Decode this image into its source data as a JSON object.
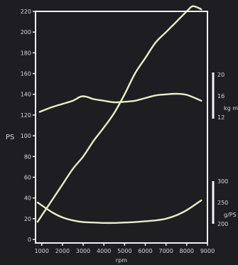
{
  "chart_data": {
    "type": "line",
    "x_ticks": [
      "1000",
      "2000",
      "3000",
      "4000",
      "5000",
      "6000",
      "7000",
      "8000",
      "9000"
    ],
    "xlabel": "rpm",
    "xlim": [
      700,
      9000
    ],
    "left_axis": {
      "label": "PS",
      "ticks": [
        "0",
        "20",
        "40",
        "60",
        "80",
        "100",
        "120",
        "140",
        "160",
        "180",
        "200",
        "220"
      ],
      "ylim": [
        0,
        220
      ]
    },
    "torque_axis": {
      "label": "kg m",
      "ticks": [
        "12",
        "16",
        "20"
      ]
    },
    "consumption_axis": {
      "label": "g/PS h",
      "ticks": [
        "200",
        "250",
        "300"
      ]
    },
    "series": [
      {
        "axis": "PS",
        "x": [
          800,
          1000,
          1500,
          2000,
          2500,
          3000,
          3500,
          4000,
          4500,
          5000,
          5500,
          6000,
          6500,
          7000,
          7500,
          8000,
          8300,
          8700
        ],
        "values": [
          17,
          23,
          38,
          53,
          68,
          80,
          95,
          108,
          122,
          140,
          160,
          175,
          190,
          200,
          210,
          220,
          225,
          222
        ]
      },
      {
        "axis": "kg m",
        "x": [
          900,
          1500,
          2000,
          2500,
          2900,
          3200,
          3500,
          4000,
          4500,
          5000,
          5500,
          6000,
          6500,
          7000,
          7500,
          8000,
          8700
        ],
        "values": [
          13.0,
          13.9,
          14.5,
          15.1,
          15.9,
          15.8,
          15.4,
          15.1,
          14.8,
          14.9,
          15.1,
          15.6,
          16.1,
          16.3,
          16.4,
          16.2,
          15.1
        ]
      },
      {
        "axis": "g/PS h",
        "x": [
          800,
          1500,
          2000,
          2500,
          3000,
          3500,
          4000,
          4500,
          5000,
          5500,
          6000,
          6500,
          7000,
          7500,
          8000,
          8700
        ],
        "values": [
          250,
          227,
          215,
          208,
          204,
          203,
          202,
          202,
          203,
          204,
          206,
          208,
          212,
          220,
          232,
          255
        ]
      }
    ],
    "grid": false,
    "colors": {
      "background": "#1e1d21",
      "frame": "#f2f2f2",
      "curve": "#e6f0c8",
      "text": "#d8d8d8"
    }
  }
}
